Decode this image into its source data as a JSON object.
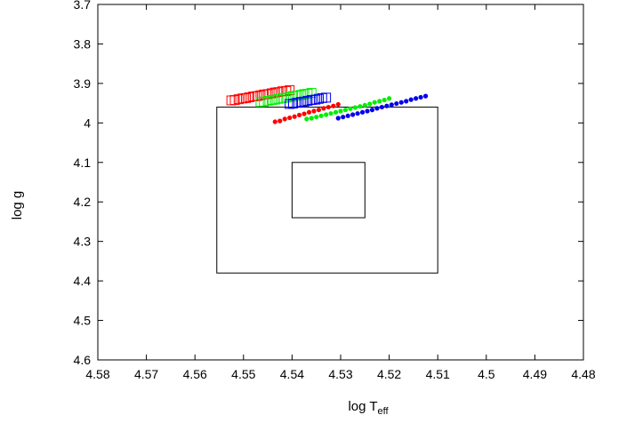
{
  "chart_data": {
    "type": "scatter",
    "title": "",
    "xlabel": {
      "base": "log T",
      "sub": "eff"
    },
    "ylabel": "log g",
    "xlim": [
      4.58,
      4.48
    ],
    "ylim": [
      4.6,
      3.7
    ],
    "x_reversed": true,
    "y_reversed": true,
    "grid": false,
    "x_ticks": [
      {
        "value": 4.58,
        "label": "4.58"
      },
      {
        "value": 4.57,
        "label": "4.57"
      },
      {
        "value": 4.56,
        "label": "4.56"
      },
      {
        "value": 4.55,
        "label": "4.55"
      },
      {
        "value": 4.54,
        "label": "4.54"
      },
      {
        "value": 4.53,
        "label": "4.53"
      },
      {
        "value": 4.52,
        "label": "4.52"
      },
      {
        "value": 4.51,
        "label": "4.51"
      },
      {
        "value": 4.5,
        "label": "4.5"
      },
      {
        "value": 4.49,
        "label": "4.49"
      },
      {
        "value": 4.48,
        "label": "4.48"
      }
    ],
    "y_ticks": [
      {
        "value": 3.7,
        "label": "3.7"
      },
      {
        "value": 3.8,
        "label": "3.8"
      },
      {
        "value": 3.9,
        "label": "3.9"
      },
      {
        "value": 4.0,
        "label": "4"
      },
      {
        "value": 4.1,
        "label": "4.1"
      },
      {
        "value": 4.2,
        "label": "4.2"
      },
      {
        "value": 4.3,
        "label": "4.3"
      },
      {
        "value": 4.4,
        "label": "4.4"
      },
      {
        "value": 4.5,
        "label": "4.5"
      },
      {
        "value": 4.6,
        "label": "4.6"
      }
    ],
    "boxes": [
      {
        "x": [
          4.5555,
          4.51
        ],
        "y": [
          3.96,
          4.38
        ],
        "color": "#000000"
      },
      {
        "x": [
          4.54,
          4.525
        ],
        "y": [
          4.1,
          4.24
        ],
        "color": "#000000"
      }
    ],
    "series": [
      {
        "color": "#ff0000",
        "marker": "circle",
        "x": [
          4.5435,
          4.5425,
          4.5415,
          4.5405,
          4.5395,
          4.5385,
          4.5375,
          4.5365,
          4.5355,
          4.5345,
          4.5335,
          4.5325,
          4.5315,
          4.5305
        ],
        "y": [
          3.997,
          3.995,
          3.99,
          3.987,
          3.984,
          3.98,
          3.977,
          3.973,
          3.97,
          3.967,
          3.963,
          3.96,
          3.957,
          3.953
        ]
      },
      {
        "color": "#00ee00",
        "marker": "circle",
        "x": [
          4.537,
          4.536,
          4.535,
          4.534,
          4.533,
          4.532,
          4.531,
          4.53,
          4.529,
          4.528,
          4.527,
          4.526,
          4.525,
          4.524,
          4.523,
          4.522,
          4.521,
          4.52
        ],
        "y": [
          3.99,
          3.988,
          3.985,
          3.982,
          3.979,
          3.976,
          3.973,
          3.97,
          3.967,
          3.964,
          3.961,
          3.958,
          3.955,
          3.952,
          3.948,
          3.945,
          3.942,
          3.938
        ]
      },
      {
        "color": "#0000ee",
        "marker": "circle",
        "x": [
          4.5305,
          4.5295,
          4.5285,
          4.5275,
          4.5265,
          4.5255,
          4.5245,
          4.5235,
          4.5225,
          4.5215,
          4.5205,
          4.5195,
          4.5185,
          4.5175,
          4.5165,
          4.5155,
          4.5145,
          4.5135,
          4.5125
        ],
        "y": [
          3.988,
          3.985,
          3.982,
          3.979,
          3.976,
          3.973,
          3.97,
          3.967,
          3.963,
          3.96,
          3.957,
          3.954,
          3.951,
          3.948,
          3.945,
          3.941,
          3.938,
          3.935,
          3.932
        ]
      },
      {
        "color": "#ff0000",
        "marker": "square",
        "x": [
          4.5525,
          4.5518,
          4.551,
          4.5502,
          4.5495,
          4.5488,
          4.548,
          4.5472,
          4.5465,
          4.5458,
          4.545,
          4.5442,
          4.5435,
          4.5428,
          4.542,
          4.5412,
          4.5405
        ],
        "y": [
          3.943,
          3.942,
          3.94,
          3.938,
          3.937,
          3.935,
          3.933,
          3.932,
          3.93,
          3.928,
          3.927,
          3.925,
          3.923,
          3.922,
          3.92,
          3.919,
          3.917
        ]
      },
      {
        "color": "#00ee00",
        "marker": "square",
        "x": [
          4.5465,
          4.5458,
          4.545,
          4.5442,
          4.5435,
          4.5428,
          4.542,
          4.5412,
          4.5405,
          4.5398,
          4.539,
          4.5382,
          4.5375,
          4.5368,
          4.536
        ],
        "y": [
          3.947,
          3.946,
          3.944,
          3.942,
          3.941,
          3.939,
          3.937,
          3.936,
          3.934,
          3.932,
          3.931,
          3.929,
          3.927,
          3.926,
          3.924
        ]
      },
      {
        "color": "#0000ee",
        "marker": "square",
        "x": [
          4.5405,
          4.5398,
          4.539,
          4.5382,
          4.5375,
          4.5368,
          4.536,
          4.5352,
          4.5345,
          4.5338,
          4.533
        ],
        "y": [
          3.952,
          3.951,
          3.949,
          3.947,
          3.946,
          3.944,
          3.942,
          3.941,
          3.939,
          3.937,
          3.936
        ]
      }
    ]
  }
}
